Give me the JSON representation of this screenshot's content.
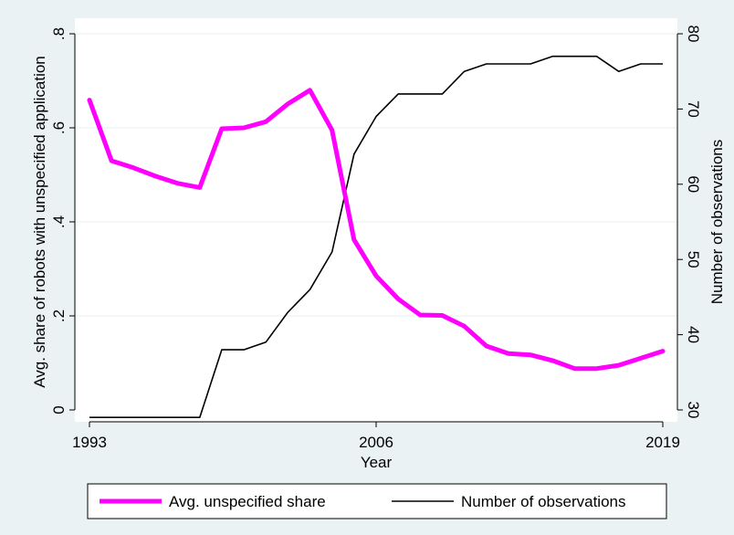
{
  "chart_data": {
    "type": "line",
    "xlabel": "Year",
    "ylabel_left": "Avg. share of robots with unspecified application",
    "ylabel_right": "Number of observations",
    "xlim": [
      1993,
      2019
    ],
    "xticks": [
      1993,
      2006,
      2019
    ],
    "ylim_left": [
      0,
      0.8
    ],
    "yticks_left": [
      0,
      0.2,
      0.4,
      0.6,
      0.8
    ],
    "yticklabels_left": [
      "0",
      ".2",
      ".4",
      ".6",
      ".8"
    ],
    "ylim_right": [
      30,
      80
    ],
    "yticks_right": [
      30,
      40,
      50,
      60,
      70,
      80
    ],
    "grid": true,
    "legend_position": "bottom",
    "colors": {
      "share": "#ff00ff",
      "obs": "#000000",
      "background": "#eaf2f3",
      "plot": "#ffffff",
      "grid": "#e8eff0"
    },
    "x": [
      1993,
      1994,
      1995,
      1996,
      1997,
      1998,
      1999,
      2000,
      2001,
      2002,
      2003,
      2004,
      2005,
      2006,
      2007,
      2008,
      2009,
      2010,
      2011,
      2012,
      2013,
      2014,
      2015,
      2016,
      2017,
      2018,
      2019
    ],
    "series": [
      {
        "name": "Avg. unspecified share",
        "axis": "left",
        "values": [
          0.659,
          0.53,
          0.515,
          0.497,
          0.482,
          0.473,
          0.598,
          0.6,
          0.613,
          0.651,
          0.68,
          0.595,
          0.362,
          0.285,
          0.236,
          0.202,
          0.201,
          0.178,
          0.136,
          0.12,
          0.117,
          0.105,
          0.088,
          0.088,
          0.095,
          0.11,
          0.125
        ]
      },
      {
        "name": "Number of observations",
        "axis": "right",
        "values": [
          29,
          29,
          29,
          29,
          29,
          29,
          38,
          38,
          39,
          43,
          46,
          51,
          64,
          69,
          72,
          72,
          72,
          75,
          76,
          76,
          76,
          77,
          77,
          77,
          75,
          76,
          76
        ]
      }
    ]
  }
}
